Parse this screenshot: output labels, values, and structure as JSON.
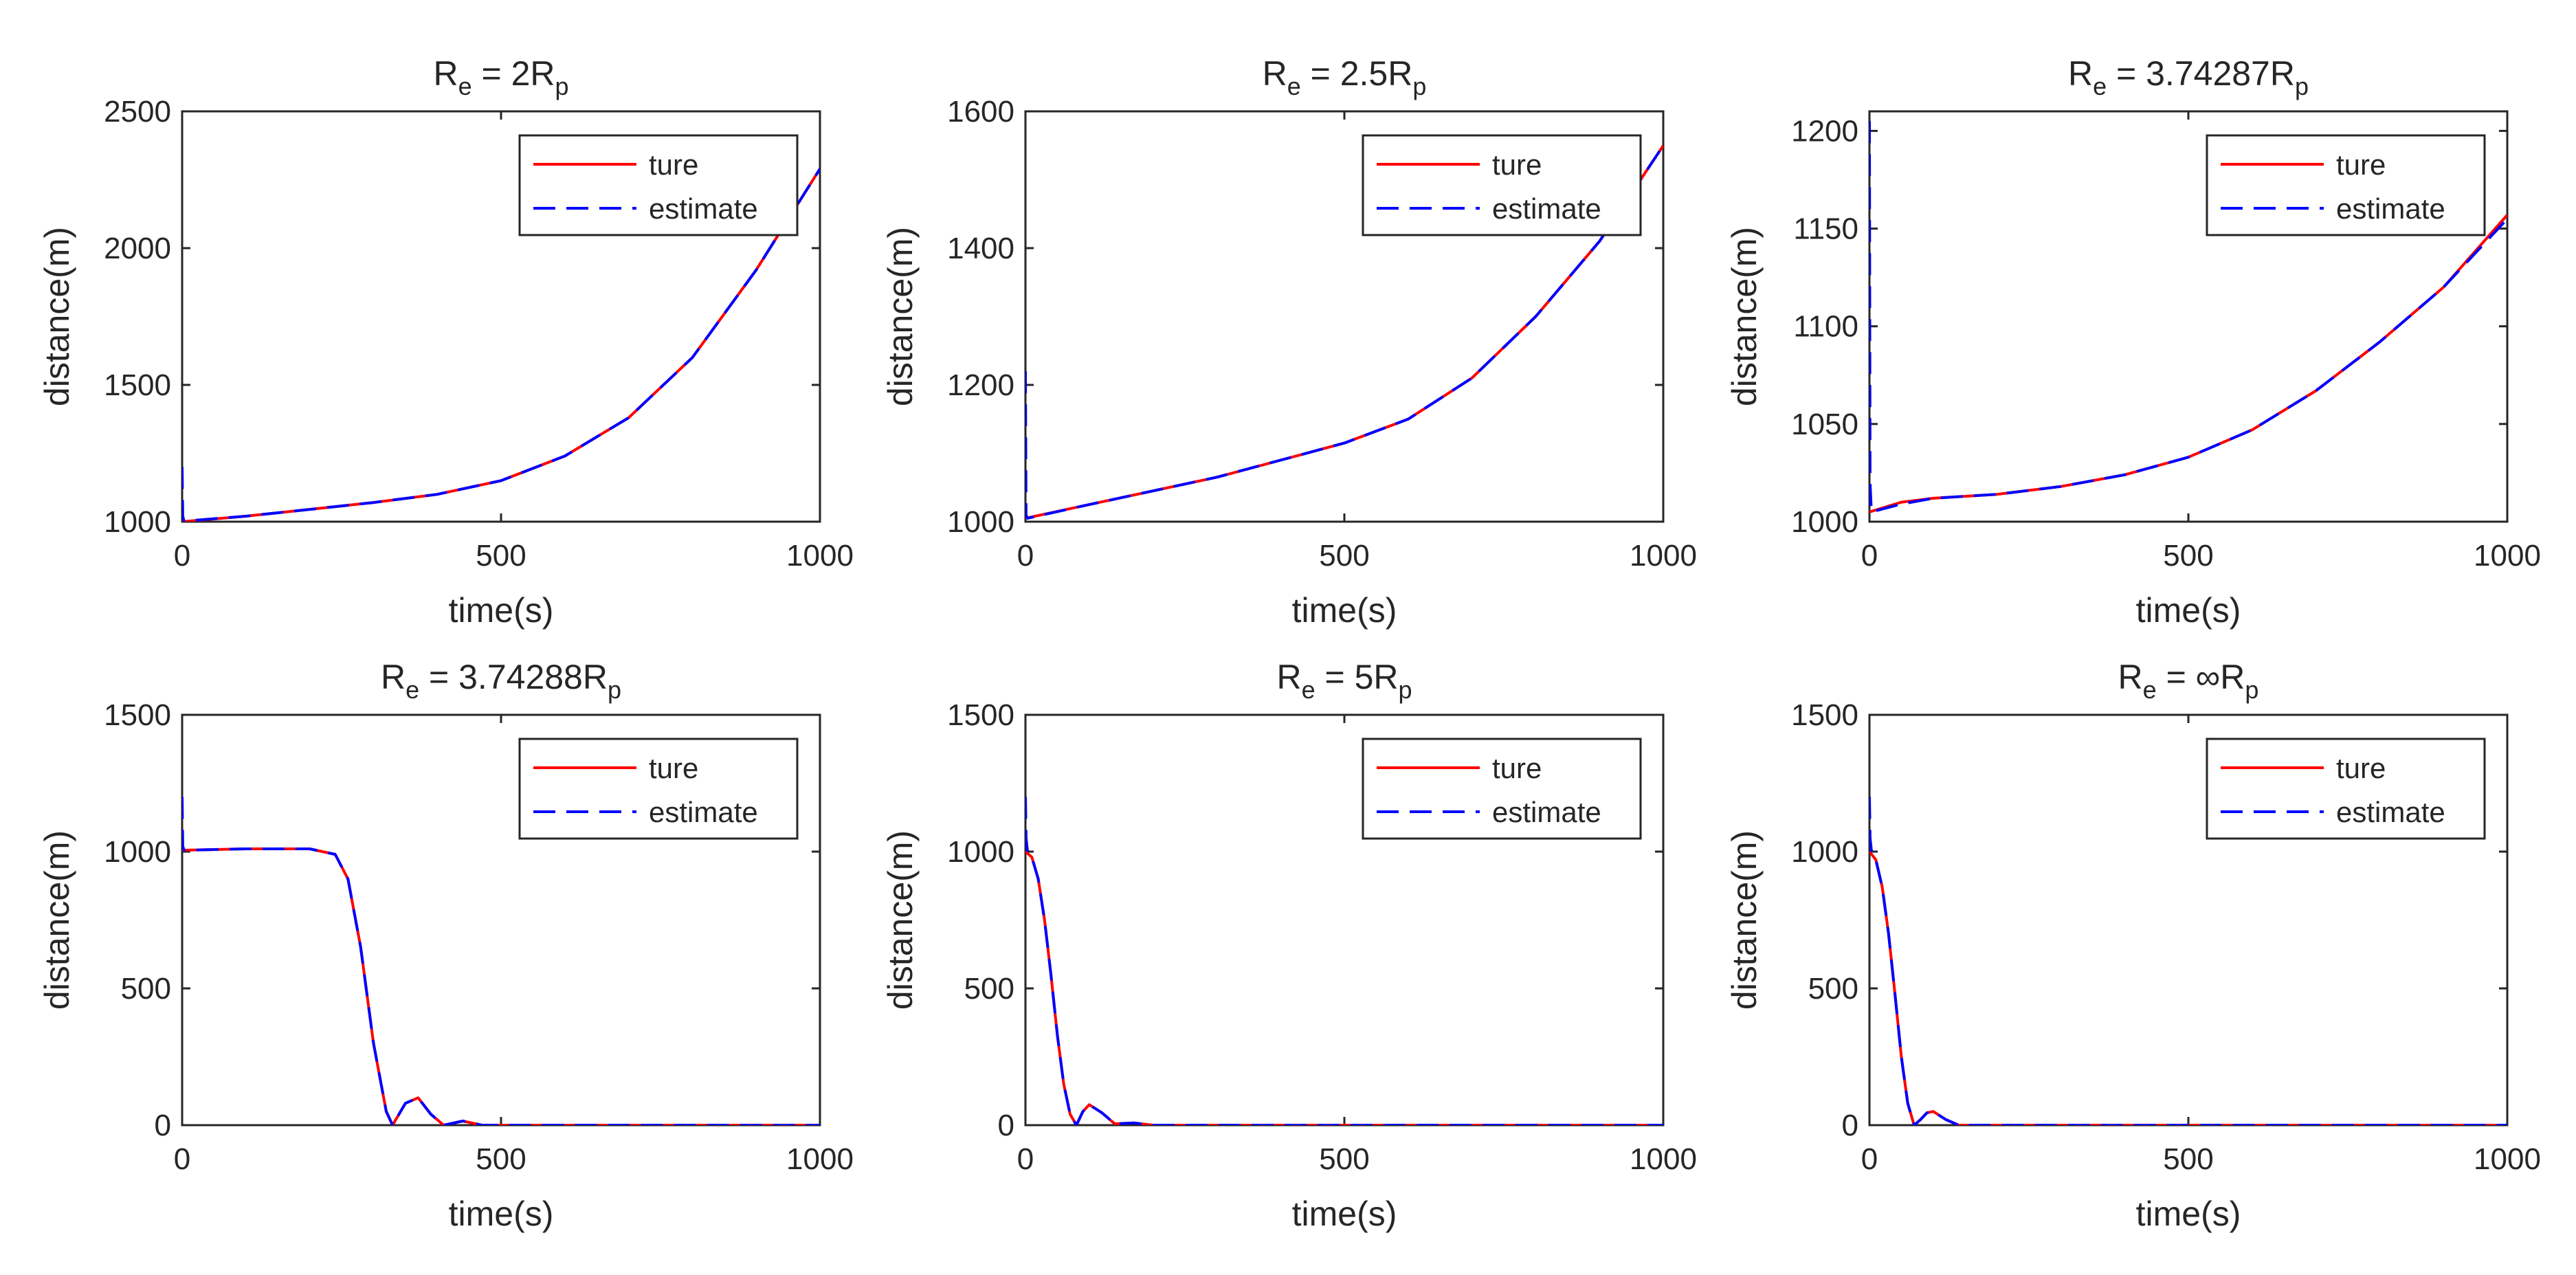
{
  "colors": {
    "true": "#ff0000",
    "estimate": "#0000ff",
    "axis": "#262626",
    "background": "#ffffff"
  },
  "chart_data": [
    {
      "type": "line",
      "title": {
        "main": "R",
        "sub1": "e",
        "mid": " = 2R",
        "sub2": "p"
      },
      "xlabel": "time(s)",
      "ylabel": "distance(m)",
      "xlim": [
        0,
        1000
      ],
      "ylim": [
        1000,
        2500
      ],
      "xticks": [
        0,
        500,
        1000
      ],
      "yticks": [
        1000,
        1500,
        2000,
        2500
      ],
      "legend": [
        "ture",
        "estimate"
      ],
      "legend_position": "top-right",
      "series": [
        {
          "name": "ture",
          "x": [
            0,
            100,
            200,
            300,
            400,
            500,
            600,
            700,
            800,
            900,
            1000
          ],
          "y": [
            1000,
            1020,
            1045,
            1070,
            1100,
            1150,
            1240,
            1380,
            1600,
            1920,
            2290
          ]
        },
        {
          "name": "estimate",
          "x": [
            0,
            1,
            3,
            100,
            200,
            300,
            400,
            500,
            600,
            700,
            800,
            900,
            1000
          ],
          "y": [
            1200,
            1020,
            1002,
            1020,
            1045,
            1070,
            1100,
            1150,
            1240,
            1380,
            1600,
            1920,
            2290
          ]
        }
      ]
    },
    {
      "type": "line",
      "title": {
        "main": "R",
        "sub1": "e",
        "mid": " = 2.5R",
        "sub2": "p"
      },
      "xlabel": "time(s)",
      "ylabel": "distance(m)",
      "xlim": [
        0,
        1000
      ],
      "ylim": [
        1000,
        1600
      ],
      "xticks": [
        0,
        500,
        1000
      ],
      "yticks": [
        1000,
        1200,
        1400,
        1600
      ],
      "legend": [
        "ture",
        "estimate"
      ],
      "legend_position": "top-right",
      "series": [
        {
          "name": "ture",
          "x": [
            0,
            100,
            200,
            300,
            400,
            500,
            600,
            700,
            800,
            900,
            1000
          ],
          "y": [
            1005,
            1025,
            1045,
            1065,
            1090,
            1115,
            1150,
            1210,
            1300,
            1410,
            1550
          ]
        },
        {
          "name": "estimate",
          "x": [
            0,
            1,
            3,
            100,
            200,
            300,
            400,
            500,
            600,
            700,
            800,
            900,
            1000
          ],
          "y": [
            1220,
            1010,
            1005,
            1025,
            1045,
            1065,
            1090,
            1115,
            1150,
            1210,
            1300,
            1410,
            1550
          ]
        }
      ]
    },
    {
      "type": "line",
      "title": {
        "main": "R",
        "sub1": "e",
        "mid": " = 3.74287R",
        "sub2": "p"
      },
      "xlabel": "time(s)",
      "ylabel": "distance(m)",
      "xlim": [
        0,
        1000
      ],
      "ylim": [
        1000,
        1210
      ],
      "xticks": [
        0,
        500,
        1000
      ],
      "yticks": [
        1000,
        1050,
        1100,
        1150,
        1200
      ],
      "legend": [
        "ture",
        "estimate"
      ],
      "legend_position": "top-right",
      "series": [
        {
          "name": "ture",
          "x": [
            0,
            50,
            100,
            200,
            300,
            400,
            500,
            600,
            700,
            800,
            900,
            1000
          ],
          "y": [
            1005,
            1010,
            1012,
            1014,
            1018,
            1024,
            1033,
            1047,
            1067,
            1092,
            1120,
            1157
          ]
        },
        {
          "name": "estimate",
          "x": [
            0,
            1,
            3,
            50,
            100,
            200,
            300,
            400,
            500,
            600,
            700,
            800,
            900,
            1000
          ],
          "y": [
            1205,
            1020,
            1005,
            1009,
            1012,
            1014,
            1018,
            1024,
            1033,
            1047,
            1067,
            1092,
            1120,
            1155
          ]
        }
      ]
    },
    {
      "type": "line",
      "title": {
        "main": "R",
        "sub1": "e",
        "mid": " = 3.74288R",
        "sub2": "p"
      },
      "xlabel": "time(s)",
      "ylabel": "distance(m)",
      "xlim": [
        0,
        1000
      ],
      "ylim": [
        0,
        1500
      ],
      "xticks": [
        0,
        500,
        1000
      ],
      "yticks": [
        0,
        500,
        1000,
        1500
      ],
      "legend": [
        "ture",
        "estimate"
      ],
      "legend_position": "top-right",
      "series": [
        {
          "name": "ture",
          "x": [
            0,
            100,
            200,
            240,
            260,
            280,
            300,
            320,
            330,
            350,
            370,
            390,
            410,
            440,
            470,
            500,
            1000
          ],
          "y": [
            1005,
            1010,
            1010,
            990,
            900,
            650,
            300,
            50,
            0,
            80,
            100,
            40,
            0,
            15,
            0,
            0,
            0
          ]
        },
        {
          "name": "estimate",
          "x": [
            0,
            1,
            3,
            100,
            200,
            240,
            260,
            280,
            300,
            320,
            330,
            350,
            370,
            390,
            410,
            440,
            470,
            500,
            1000
          ],
          "y": [
            1200,
            1020,
            1005,
            1010,
            1010,
            990,
            900,
            650,
            300,
            50,
            0,
            80,
            100,
            40,
            0,
            15,
            0,
            0,
            0
          ]
        }
      ]
    },
    {
      "type": "line",
      "title": {
        "main": "R",
        "sub1": "e",
        "mid": " = 5R",
        "sub2": "p"
      },
      "xlabel": "time(s)",
      "ylabel": "distance(m)",
      "xlim": [
        0,
        1000
      ],
      "ylim": [
        0,
        1500
      ],
      "xticks": [
        0,
        500,
        1000
      ],
      "yticks": [
        0,
        500,
        1000,
        1500
      ],
      "legend": [
        "ture",
        "estimate"
      ],
      "legend_position": "top-right",
      "series": [
        {
          "name": "ture",
          "x": [
            0,
            10,
            20,
            30,
            40,
            50,
            60,
            70,
            80,
            90,
            100,
            120,
            140,
            170,
            200,
            1000
          ],
          "y": [
            1000,
            980,
            900,
            750,
            550,
            330,
            150,
            40,
            0,
            50,
            75,
            45,
            5,
            8,
            0,
            0
          ]
        },
        {
          "name": "estimate",
          "x": [
            0,
            1,
            3,
            10,
            20,
            30,
            40,
            50,
            60,
            70,
            80,
            90,
            100,
            120,
            140,
            170,
            200,
            1000
          ],
          "y": [
            1200,
            1050,
            1005,
            980,
            900,
            750,
            550,
            330,
            150,
            40,
            0,
            50,
            75,
            45,
            5,
            8,
            0,
            0
          ]
        }
      ]
    },
    {
      "type": "line",
      "title": {
        "main": "R",
        "sub1": "e",
        "mid": " = ∞R",
        "sub2": "p"
      },
      "xlabel": "time(s)",
      "ylabel": "distance(m)",
      "xlim": [
        0,
        1000
      ],
      "ylim": [
        0,
        1500
      ],
      "xticks": [
        0,
        500,
        1000
      ],
      "yticks": [
        0,
        500,
        1000,
        1500
      ],
      "legend": [
        "ture",
        "estimate"
      ],
      "legend_position": "top-right",
      "series": [
        {
          "name": "ture",
          "x": [
            0,
            10,
            20,
            30,
            40,
            50,
            60,
            70,
            80,
            90,
            100,
            120,
            140,
            1000
          ],
          "y": [
            1000,
            970,
            870,
            700,
            480,
            250,
            80,
            0,
            20,
            45,
            50,
            20,
            0,
            0
          ]
        },
        {
          "name": "estimate",
          "x": [
            0,
            1,
            3,
            10,
            20,
            30,
            40,
            50,
            60,
            70,
            80,
            90,
            100,
            120,
            140,
            1000
          ],
          "y": [
            1200,
            1050,
            1005,
            970,
            870,
            700,
            480,
            250,
            80,
            0,
            20,
            45,
            50,
            20,
            0,
            0
          ]
        }
      ]
    }
  ]
}
